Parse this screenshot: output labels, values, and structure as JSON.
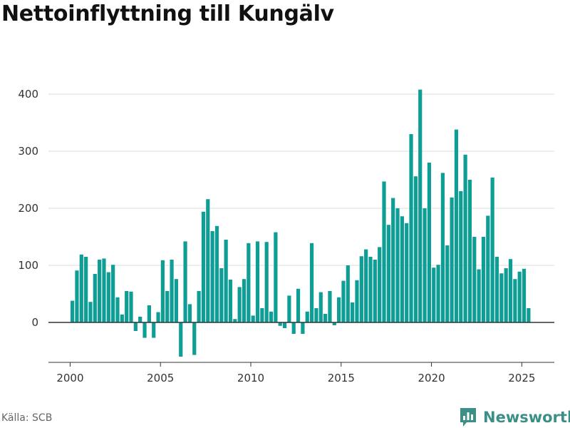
{
  "chart_data": {
    "type": "bar",
    "title": "Nettoinflyttning till Kungälv",
    "xlabel": "",
    "ylabel": "",
    "bar_color": "#0f9e95",
    "x_start": 2000.125,
    "x_step": 0.25,
    "xlim": [
      1998.8,
      2026.8
    ],
    "ylim": [
      -70,
      420
    ],
    "y_ticks": [
      0,
      100,
      200,
      300,
      400
    ],
    "x_ticks": [
      2000,
      2005,
      2010,
      2015,
      2020,
      2025
    ],
    "values": [
      38,
      91,
      119,
      115,
      36,
      85,
      110,
      112,
      88,
      101,
      44,
      14,
      55,
      54,
      -15,
      10,
      -27,
      30,
      -27,
      18,
      109,
      55,
      110,
      76,
      -60,
      142,
      32,
      -57,
      55,
      194,
      216,
      160,
      169,
      95,
      145,
      75,
      6,
      62,
      76,
      139,
      12,
      142,
      25,
      141,
      19,
      158,
      -6,
      -10,
      47,
      -20,
      59,
      -20,
      19,
      139,
      25,
      53,
      15,
      55,
      -5,
      44,
      73,
      100,
      35,
      74,
      116,
      128,
      115,
      110,
      132,
      247,
      171,
      218,
      200,
      186,
      174,
      330,
      256,
      408,
      200,
      280,
      96,
      101,
      262,
      135,
      219,
      338,
      230,
      294,
      250,
      150,
      93,
      150,
      187,
      254,
      115,
      86,
      95,
      111,
      76,
      89,
      94,
      25
    ]
  },
  "source_label": "Källa: SCB",
  "brand": {
    "name": "Newsworthy",
    "logo_icon": "bar-chart-speech-bubble-icon",
    "color": "#3c8f87"
  }
}
